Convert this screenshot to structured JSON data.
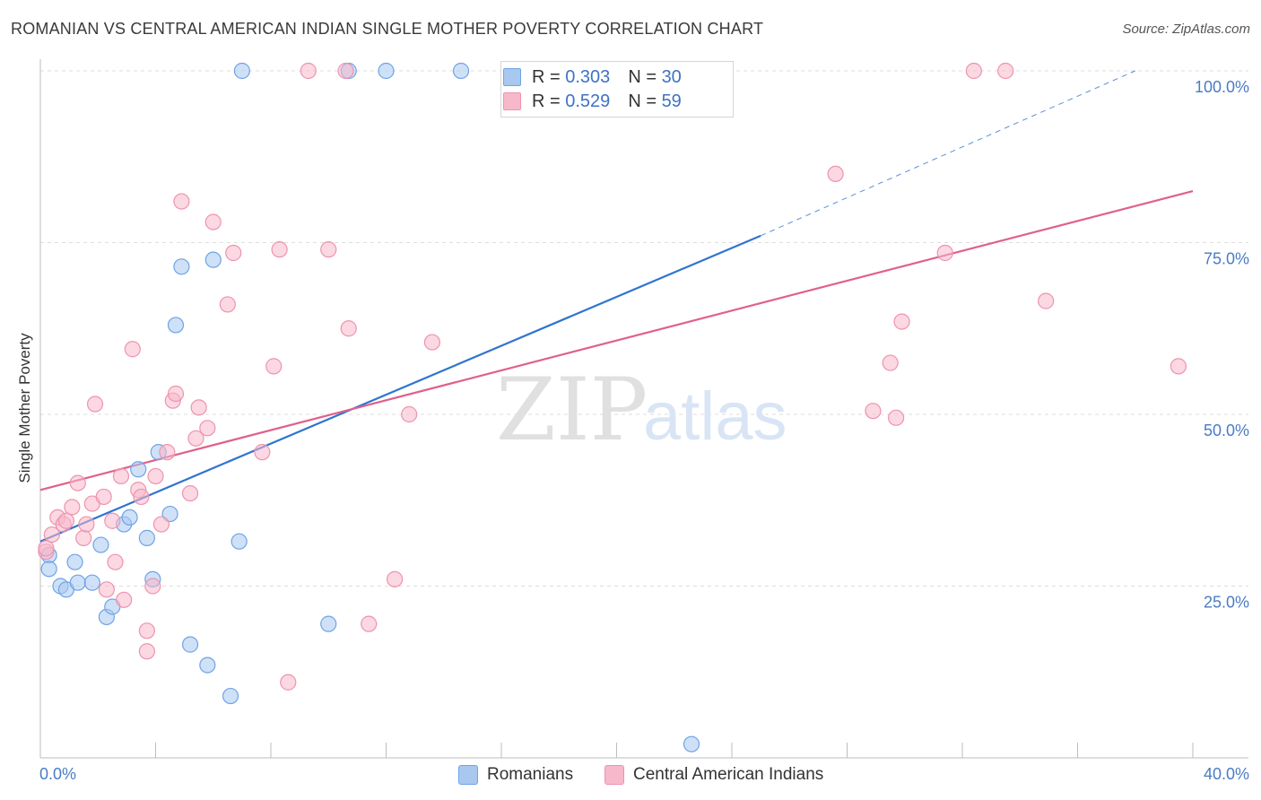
{
  "header": {
    "title": "ROMANIAN VS CENTRAL AMERICAN INDIAN SINGLE MOTHER POVERTY CORRELATION CHART",
    "source": "Source: ZipAtlas.com"
  },
  "watermark": {
    "zip": "ZIP",
    "atlas": "atlas"
  },
  "legend": {
    "rows": [
      {
        "r_label": "R = ",
        "r_value": "0.303",
        "n_label": "N = ",
        "n_value": "30",
        "color": "#a8c8f0"
      },
      {
        "r_label": "R = ",
        "r_value": "0.529",
        "n_label": "N = ",
        "n_value": "59",
        "color": "#f7b8cb"
      }
    ]
  },
  "bottom_legend": [
    {
      "label": "Romanians",
      "color": "#a8c8f0"
    },
    {
      "label": "Central American Indians",
      "color": "#f7b8cb"
    }
  ],
  "chart_data": {
    "type": "scatter",
    "title": "ROMANIAN VS CENTRAL AMERICAN INDIAN SINGLE MOTHER POVERTY CORRELATION CHART",
    "xlabel": "",
    "ylabel": "Single Mother Poverty",
    "xlim": [
      0,
      40
    ],
    "ylim": [
      0,
      100
    ],
    "x_tick_labels": [
      "0.0%",
      "40.0%"
    ],
    "y_ticks": [
      25,
      50,
      75,
      100
    ],
    "y_tick_labels": [
      "25.0%",
      "50.0%",
      "75.0%",
      "100.0%"
    ],
    "grid": true,
    "legend_position": "top-center",
    "series": [
      {
        "name": "Romanians",
        "color": "#6fa3e6",
        "fill": "#a8c8f0",
        "line_color": "#2f74d0",
        "trend": {
          "x0": 0.0,
          "y0": 31.5,
          "x1": 25.0,
          "y1": 76.0,
          "dash_x1": 38.0,
          "dash_y1": 100.0
        },
        "points": [
          [
            0.3,
            29.5
          ],
          [
            0.3,
            27.5
          ],
          [
            0.7,
            25.0
          ],
          [
            0.9,
            24.5
          ],
          [
            1.2,
            28.5
          ],
          [
            1.3,
            25.5
          ],
          [
            1.8,
            25.5
          ],
          [
            2.1,
            31.0
          ],
          [
            2.3,
            20.5
          ],
          [
            2.5,
            22.0
          ],
          [
            2.9,
            34.0
          ],
          [
            3.1,
            35.0
          ],
          [
            3.4,
            42.0
          ],
          [
            3.7,
            32.0
          ],
          [
            3.9,
            26.0
          ],
          [
            4.1,
            44.5
          ],
          [
            4.5,
            35.5
          ],
          [
            4.7,
            63.0
          ],
          [
            4.9,
            71.5
          ],
          [
            5.2,
            16.5
          ],
          [
            5.8,
            13.5
          ],
          [
            6.0,
            72.5
          ],
          [
            6.6,
            9.0
          ],
          [
            6.9,
            31.5
          ],
          [
            7.0,
            100.0
          ],
          [
            10.0,
            19.5
          ],
          [
            10.7,
            100.0
          ],
          [
            12.0,
            100.0
          ],
          [
            14.6,
            100.0
          ],
          [
            22.6,
            2.0
          ]
        ]
      },
      {
        "name": "Central American Indians",
        "color": "#ee93ae",
        "fill": "#f7b8cb",
        "line_color": "#e0608c",
        "trend": {
          "x0": 0.0,
          "y0": 39.0,
          "x1": 40.0,
          "y1": 82.5
        },
        "points": [
          [
            0.2,
            30.0
          ],
          [
            0.4,
            32.5
          ],
          [
            0.6,
            35.0
          ],
          [
            0.8,
            34.0
          ],
          [
            0.9,
            34.5
          ],
          [
            1.1,
            36.5
          ],
          [
            1.3,
            40.0
          ],
          [
            1.5,
            32.0
          ],
          [
            1.6,
            34.0
          ],
          [
            1.8,
            37.0
          ],
          [
            1.9,
            51.5
          ],
          [
            2.2,
            38.0
          ],
          [
            2.3,
            24.5
          ],
          [
            2.5,
            34.5
          ],
          [
            2.6,
            28.5
          ],
          [
            2.8,
            41.0
          ],
          [
            2.9,
            23.0
          ],
          [
            3.2,
            59.5
          ],
          [
            3.4,
            39.0
          ],
          [
            3.5,
            38.0
          ],
          [
            3.7,
            18.5
          ],
          [
            3.7,
            15.5
          ],
          [
            3.9,
            25.0
          ],
          [
            4.0,
            41.0
          ],
          [
            4.2,
            34.0
          ],
          [
            4.4,
            44.5
          ],
          [
            4.6,
            52.0
          ],
          [
            4.7,
            53.0
          ],
          [
            4.9,
            81.0
          ],
          [
            5.2,
            38.5
          ],
          [
            5.4,
            46.5
          ],
          [
            5.5,
            51.0
          ],
          [
            5.8,
            48.0
          ],
          [
            6.0,
            78.0
          ],
          [
            6.5,
            66.0
          ],
          [
            6.7,
            73.5
          ],
          [
            7.7,
            44.5
          ],
          [
            8.1,
            57.0
          ],
          [
            8.3,
            74.0
          ],
          [
            8.6,
            11.0
          ],
          [
            9.3,
            100.0
          ],
          [
            10.0,
            74.0
          ],
          [
            10.6,
            100.0
          ],
          [
            10.7,
            62.5
          ],
          [
            11.4,
            19.5
          ],
          [
            12.3,
            26.0
          ],
          [
            12.8,
            50.0
          ],
          [
            13.6,
            60.5
          ],
          [
            27.6,
            85.0
          ],
          [
            28.9,
            50.5
          ],
          [
            29.5,
            57.5
          ],
          [
            29.7,
            49.5
          ],
          [
            29.9,
            63.5
          ],
          [
            31.4,
            73.5
          ],
          [
            32.4,
            100.0
          ],
          [
            33.5,
            100.0
          ],
          [
            34.9,
            66.5
          ],
          [
            39.5,
            57.0
          ],
          [
            0.2,
            30.5
          ]
        ]
      }
    ]
  }
}
